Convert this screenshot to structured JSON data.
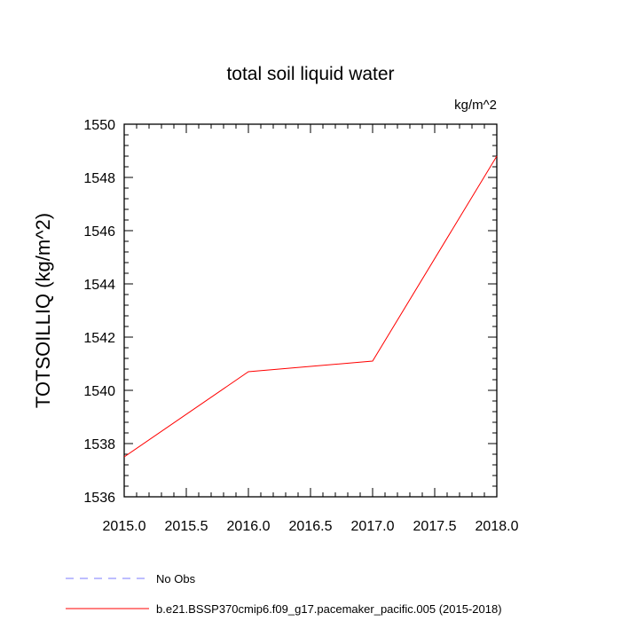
{
  "chart_data": {
    "type": "line",
    "title": "total soil liquid water",
    "units": "kg/m^2",
    "ylabel": "TOTSOILLIQ  (kg/m^2)",
    "xlabel": "",
    "xlim": [
      2015.0,
      2018.0
    ],
    "ylim": [
      1536,
      1550
    ],
    "xticks": [
      "2015.0",
      "2015.5",
      "2016.0",
      "2016.5",
      "2017.0",
      "2017.5",
      "2018.0"
    ],
    "yticks": [
      "1536",
      "1538",
      "1540",
      "1542",
      "1544",
      "1546",
      "1548",
      "1550"
    ],
    "grid": false,
    "legend_position": "bottom",
    "series": [
      {
        "name": "b.e21.BSSP370cmip6.f09_g17.pacemaker_pacific.005 (2015-2018)",
        "color": "#ff0000",
        "style": "solid",
        "x": [
          2015,
          2016,
          2017,
          2018
        ],
        "y": [
          1537.5,
          1540.7,
          1541.1,
          1548.8
        ]
      }
    ],
    "legend": [
      {
        "label": "No Obs",
        "color": "#7b7bff",
        "style": "dashed"
      },
      {
        "label": "b.e21.BSSP370cmip6.f09_g17.pacemaker_pacific.005 (2015-2018)",
        "color": "#ff0000",
        "style": "solid"
      }
    ]
  }
}
